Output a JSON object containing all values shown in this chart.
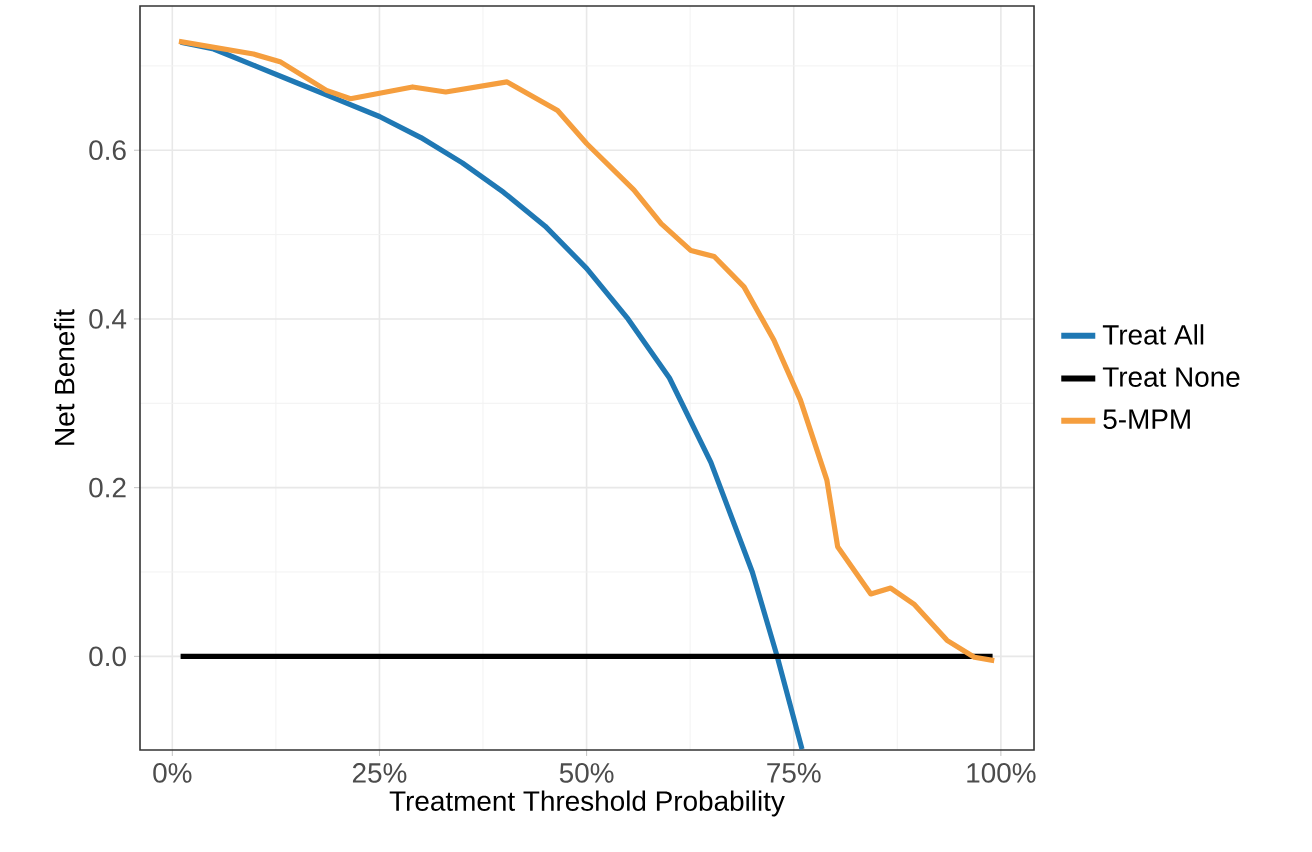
{
  "chart_data": {
    "type": "line",
    "xlabel": "Treatment Threshold Probability",
    "ylabel": "Net Benefit",
    "xlim": [
      -3.9,
      104
    ],
    "ylim": [
      -0.111,
      0.771
    ],
    "xticks": [
      {
        "value": 0,
        "label": "0%"
      },
      {
        "value": 25,
        "label": "25%"
      },
      {
        "value": 50,
        "label": "50%"
      },
      {
        "value": 75,
        "label": "75%"
      },
      {
        "value": 100,
        "label": "100%"
      }
    ],
    "yticks": [
      {
        "value": 0,
        "label": "0.0"
      },
      {
        "value": 0.2,
        "label": "0.2"
      },
      {
        "value": 0.4,
        "label": "0.4"
      },
      {
        "value": 0.6,
        "label": "0.6"
      }
    ],
    "grid": true,
    "legend": "right",
    "line_style": "solid",
    "marker": "none",
    "series": [
      {
        "name": "Treat All",
        "color": "#1f78b4",
        "x": [
          1,
          5,
          10,
          15,
          20,
          25,
          30,
          35,
          40,
          45,
          50,
          55,
          60,
          65,
          70,
          73,
          76
        ],
        "values": [
          0.728,
          0.72,
          0.7,
          0.68,
          0.66,
          0.64,
          0.615,
          0.585,
          0.55,
          0.51,
          0.46,
          0.4,
          0.33,
          0.23,
          0.1,
          0.0,
          -0.11
        ]
      },
      {
        "name": "Treat None",
        "color": "#000000",
        "x": [
          1,
          99
        ],
        "values": [
          0,
          0
        ]
      },
      {
        "name": "5-MPM",
        "color": "#f59e3e",
        "x": [
          0.8,
          9.8,
          13,
          18.6,
          21.5,
          29,
          33,
          40.4,
          46.5,
          50,
          55.7,
          59,
          62.6,
          65.4,
          69,
          72.6,
          75.8,
          79,
          80.3,
          84.3,
          86.7,
          89.5,
          93.5,
          96.8,
          99.2
        ],
        "values": [
          0.729,
          0.714,
          0.705,
          0.671,
          0.661,
          0.675,
          0.669,
          0.681,
          0.647,
          0.608,
          0.553,
          0.513,
          0.481,
          0.474,
          0.438,
          0.375,
          0.304,
          0.209,
          0.13,
          0.074,
          0.081,
          0.062,
          0.019,
          -0.001,
          -0.005
        ]
      }
    ]
  }
}
